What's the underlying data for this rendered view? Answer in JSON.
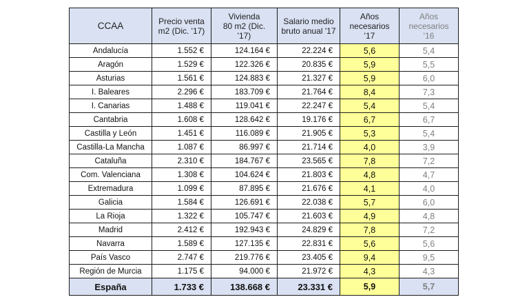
{
  "headers": {
    "ccaa": "CCAA",
    "precio": [
      "Precio venta",
      "m2 (Dic. '17)"
    ],
    "vivienda": [
      "Vivienda",
      "80 m2 (Dic.",
      "'17)"
    ],
    "salario": [
      "Salario medio",
      "bruto anual '17"
    ],
    "anos17": [
      "Años",
      "necesarios",
      "'17"
    ],
    "anos16": [
      "Años",
      "necesarios",
      "'16"
    ]
  },
  "rows": [
    {
      "name": "Andalucía",
      "precio": "1.552 €",
      "vivienda": "124.164 €",
      "salario": "22.224 €",
      "anos17": "5,6",
      "anos16": "5,4"
    },
    {
      "name": "Aragón",
      "precio": "1.529 €",
      "vivienda": "122.326 €",
      "salario": "20.835 €",
      "anos17": "5,9",
      "anos16": "5,5"
    },
    {
      "name": "Asturias",
      "precio": "1.561 €",
      "vivienda": "124.883 €",
      "salario": "21.327 €",
      "anos17": "5,9",
      "anos16": "6,0"
    },
    {
      "name": "I. Baleares",
      "precio": "2.296 €",
      "vivienda": "183.709 €",
      "salario": "21.764 €",
      "anos17": "8,4",
      "anos16": "7,3"
    },
    {
      "name": "I. Canarias",
      "precio": "1.488 €",
      "vivienda": "119.041 €",
      "salario": "22.247 €",
      "anos17": "5,4",
      "anos16": "5,4"
    },
    {
      "name": "Cantabria",
      "precio": "1.608 €",
      "vivienda": "128.642 €",
      "salario": "19.176 €",
      "anos17": "6,7",
      "anos16": "6,7"
    },
    {
      "name": "Castilla y León",
      "precio": "1.451 €",
      "vivienda": "116.089 €",
      "salario": "21.905 €",
      "anos17": "5,3",
      "anos16": "5,4"
    },
    {
      "name": "Castilla-La Mancha",
      "precio": "1.087 €",
      "vivienda": "86.997 €",
      "salario": "21.714 €",
      "anos17": "4,0",
      "anos16": "3,9"
    },
    {
      "name": "Cataluña",
      "precio": "2.310 €",
      "vivienda": "184.767 €",
      "salario": "23.565 €",
      "anos17": "7,8",
      "anos16": "7,2"
    },
    {
      "name": "Com. Valenciana",
      "precio": "1.308 €",
      "vivienda": "104.624 €",
      "salario": "21.803 €",
      "anos17": "4,8",
      "anos16": "4,7"
    },
    {
      "name": "Extremadura",
      "precio": "1.099 €",
      "vivienda": "87.895 €",
      "salario": "21.676 €",
      "anos17": "4,1",
      "anos16": "4,0"
    },
    {
      "name": "Galicia",
      "precio": "1.584 €",
      "vivienda": "126.691 €",
      "salario": "22.038 €",
      "anos17": "5,7",
      "anos16": "6,0"
    },
    {
      "name": "La Rioja",
      "precio": "1.322 €",
      "vivienda": "105.747 €",
      "salario": "21.603 €",
      "anos17": "4,9",
      "anos16": "4,8"
    },
    {
      "name": "Madrid",
      "precio": "2.412 €",
      "vivienda": "192.943 €",
      "salario": "24.829 €",
      "anos17": "7,8",
      "anos16": "7,2"
    },
    {
      "name": "Navarra",
      "precio": "1.589 €",
      "vivienda": "127.135 €",
      "salario": "22.831 €",
      "anos17": "5,6",
      "anos16": "5,6"
    },
    {
      "name": "País Vasco",
      "precio": "2.747 €",
      "vivienda": "219.776 €",
      "salario": "23.405 €",
      "anos17": "9,4",
      "anos16": "9,5"
    },
    {
      "name": "Región de Murcia",
      "precio": "1.175 €",
      "vivienda": "94.000 €",
      "salario": "21.972 €",
      "anos17": "4,3",
      "anos16": "4,3"
    }
  ],
  "total": {
    "name": "España",
    "precio": "1.733 €",
    "vivienda": "138.668 €",
    "salario": "23.331 €",
    "anos17": "5,9",
    "anos16": "5,7"
  },
  "colors": {
    "header_bg": "#d9e1f2",
    "highlight": "#ffff99",
    "muted_text": "#7f7f7f"
  }
}
